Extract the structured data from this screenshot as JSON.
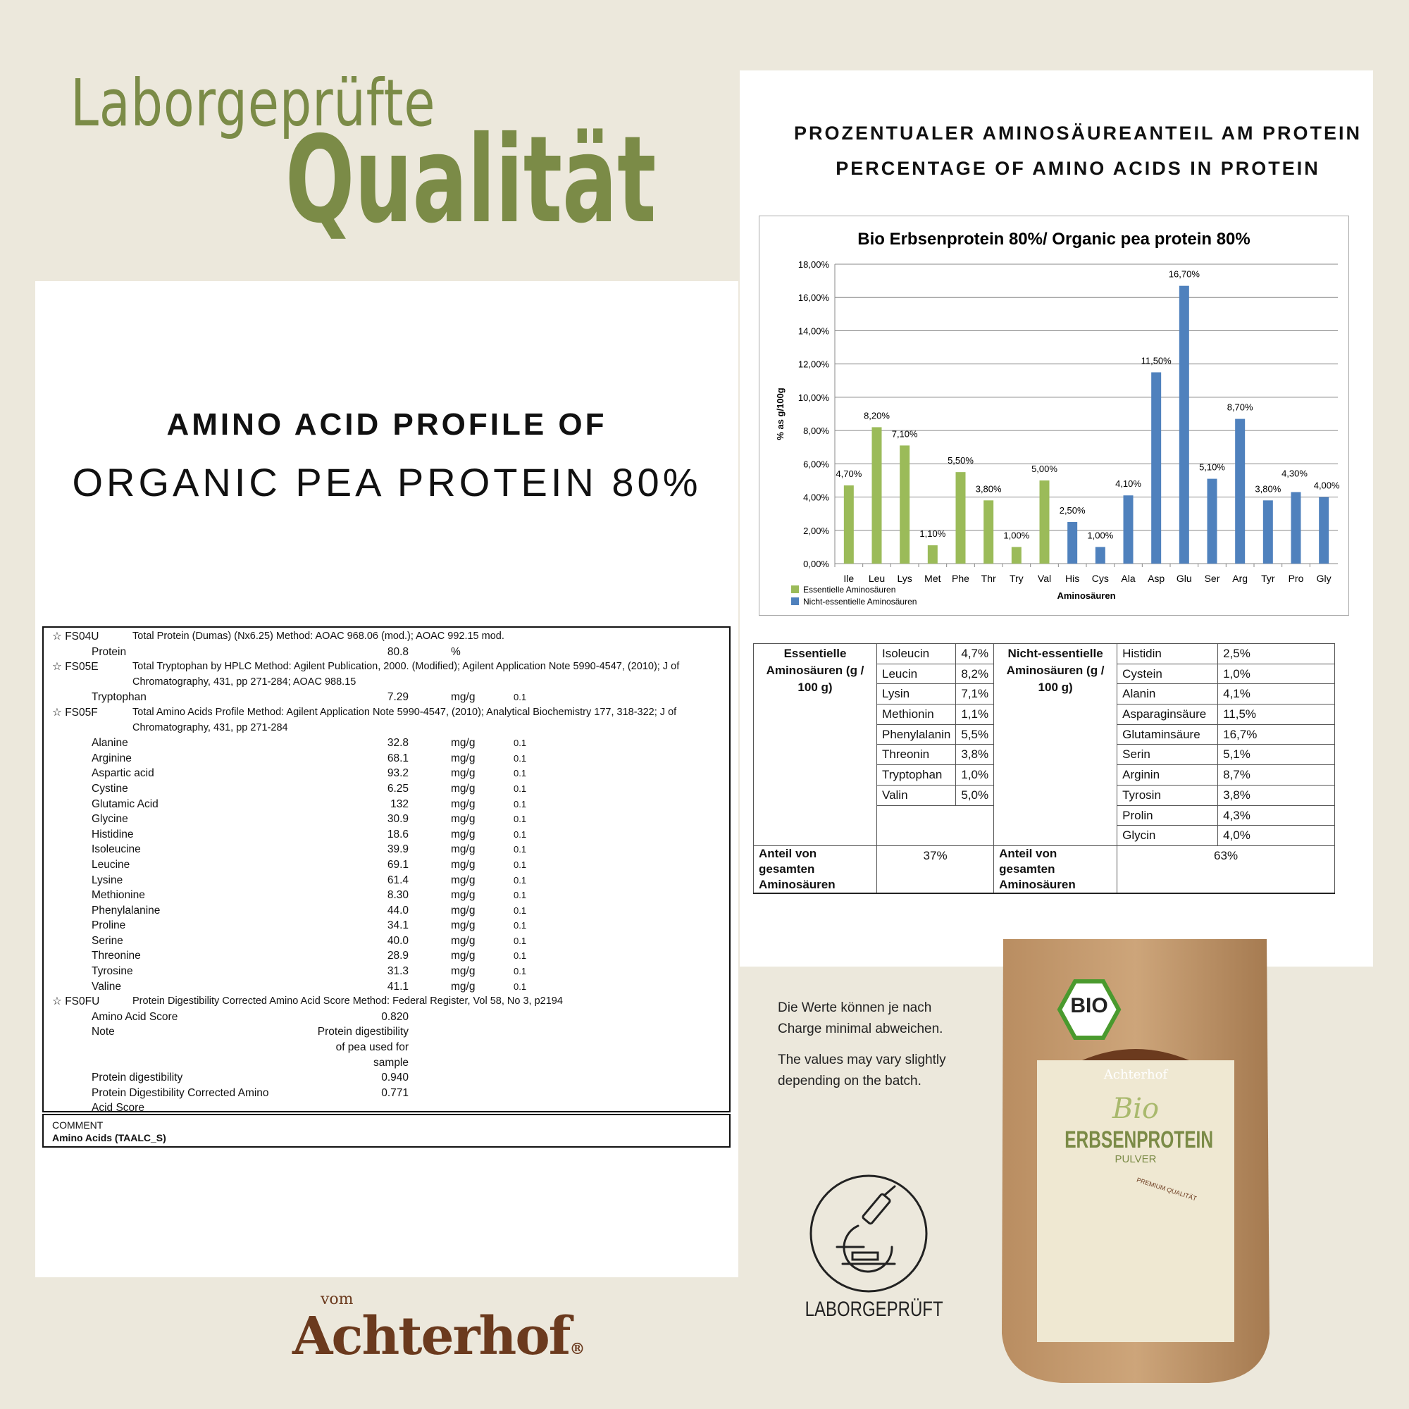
{
  "headline": {
    "line1": "Laborgeprüfte",
    "line2": "Qualität"
  },
  "left_title": {
    "line1": "AMINO ACID PROFILE OF",
    "line2": "ORGANIC PEA PROTEIN 80%"
  },
  "right_title": {
    "line1": "PROZENTUALER AMINOSÄUREANTEIL AM PROTEIN",
    "line2": "PERCENTAGE OF AMINO ACIDS IN PROTEIN"
  },
  "report": {
    "lines": [
      {
        "code": "☆ FS04U",
        "desc": "Total Protein (Dumas) (Nx6.25)    Method: AOAC 968.06 (mod.); AOAC 992.15 mod."
      },
      {
        "name": "Protein",
        "val": "80.8",
        "unit": "%"
      },
      {
        "code": "☆ FS05E",
        "desc": "Total Tryptophan by HPLC    Method: Agilent Publication, 2000. (Modified); Agilent Application Note 5990-4547, (2010); J of"
      },
      {
        "desc": "Chromatography, 431, pp 271-284; AOAC 988.15"
      },
      {
        "name": "Tryptophan",
        "val": "7.29",
        "unit": "mg/g",
        "lod": "0.1"
      },
      {
        "code": "☆ FS05F",
        "desc": "Total Amino Acids Profile    Method: Agilent Application Note 5990-4547, (2010); Analytical Biochemistry 177, 318-322; J of"
      },
      {
        "desc": "Chromatography, 431, pp 271-284"
      },
      {
        "name": "Alanine",
        "val": "32.8",
        "unit": "mg/g",
        "lod": "0.1"
      },
      {
        "name": "Arginine",
        "val": "68.1",
        "unit": "mg/g",
        "lod": "0.1"
      },
      {
        "name": "Aspartic acid",
        "val": "93.2",
        "unit": "mg/g",
        "lod": "0.1"
      },
      {
        "name": "Cystine",
        "val": "6.25",
        "unit": "mg/g",
        "lod": "0.1"
      },
      {
        "name": "Glutamic Acid",
        "val": "132",
        "unit": "mg/g",
        "lod": "0.1"
      },
      {
        "name": "Glycine",
        "val": "30.9",
        "unit": "mg/g",
        "lod": "0.1"
      },
      {
        "name": "Histidine",
        "val": "18.6",
        "unit": "mg/g",
        "lod": "0.1"
      },
      {
        "name": "Isoleucine",
        "val": "39.9",
        "unit": "mg/g",
        "lod": "0.1"
      },
      {
        "name": "Leucine",
        "val": "69.1",
        "unit": "mg/g",
        "lod": "0.1"
      },
      {
        "name": "Lysine",
        "val": "61.4",
        "unit": "mg/g",
        "lod": "0.1"
      },
      {
        "name": "Methionine",
        "val": "8.30",
        "unit": "mg/g",
        "lod": "0.1"
      },
      {
        "name": "Phenylalanine",
        "val": "44.0",
        "unit": "mg/g",
        "lod": "0.1"
      },
      {
        "name": "Proline",
        "val": "34.1",
        "unit": "mg/g",
        "lod": "0.1"
      },
      {
        "name": "Serine",
        "val": "40.0",
        "unit": "mg/g",
        "lod": "0.1"
      },
      {
        "name": "Threonine",
        "val": "28.9",
        "unit": "mg/g",
        "lod": "0.1"
      },
      {
        "name": "Tyrosine",
        "val": "31.3",
        "unit": "mg/g",
        "lod": "0.1"
      },
      {
        "name": "Valine",
        "val": "41.1",
        "unit": "mg/g",
        "lod": "0.1"
      },
      {
        "code": "☆ FS0FU",
        "desc": "Protein Digestibility Corrected Amino Acid Score    Method: Federal Register, Vol 58, No 3, p2194"
      },
      {
        "name": "Amino Acid Score",
        "val": "0.820"
      },
      {
        "name": "Note",
        "val": "Protein digestibility"
      },
      {
        "val": "of pea used for"
      },
      {
        "val": "sample"
      },
      {
        "name": "Protein digestibility",
        "val": "0.940"
      },
      {
        "name": "Protein Digestibility Corrected Amino",
        "val": "0.771"
      },
      {
        "name": "Acid Score"
      }
    ],
    "comment_label": "COMMENT",
    "comment_value": "Amino Acids (TAALC_S)"
  },
  "chart_data": {
    "type": "bar",
    "title": "Bio Erbsenprotein  80%/ Organic pea protein 80%",
    "xlabel": "Aminosäuren",
    "ylabel": "% as g/100g",
    "ylim": [
      0,
      18
    ],
    "yticks": [
      "0,00%",
      "2,00%",
      "4,00%",
      "6,00%",
      "8,00%",
      "10,00%",
      "12,00%",
      "14,00%",
      "16,00%",
      "18,00%"
    ],
    "grid": true,
    "legend_position": "bottom-left",
    "categories": [
      "Ile",
      "Leu",
      "Lys",
      "Met",
      "Phe",
      "Thr",
      "Try",
      "Val",
      "His",
      "Cys",
      "Ala",
      "Asp",
      "Glu",
      "Ser",
      "Arg",
      "Tyr",
      "Pro",
      "Gly"
    ],
    "values": [
      4.7,
      8.2,
      7.1,
      1.1,
      5.5,
      3.8,
      1.0,
      5.0,
      2.5,
      1.0,
      4.1,
      11.5,
      16.7,
      5.1,
      8.7,
      3.8,
      4.3,
      4.0
    ],
    "labels": [
      "4,70%",
      "8,20%",
      "7,10%",
      "1,10%",
      "5,50%",
      "3,80%",
      "1,00%",
      "5,00%",
      "2,50%",
      "1,00%",
      "4,10%",
      "11,50%",
      "16,70%",
      "5,10%",
      "8,70%",
      "3,80%",
      "4,30%",
      "4,00%"
    ],
    "groups": [
      0,
      0,
      0,
      0,
      0,
      0,
      0,
      0,
      1,
      1,
      1,
      1,
      1,
      1,
      1,
      1,
      1,
      1
    ],
    "series": [
      {
        "name": "Essentielle Aminosäuren",
        "color": "#9bbb59"
      },
      {
        "name": "Nicht-essentielle Aminosäuren",
        "color": "#4f81bd"
      }
    ]
  },
  "table": {
    "essential_header": "Essentielle Aminosäuren (g / 100 g)",
    "nonessential_header": "Nicht-essentielle Aminosäuren (g / 100 g)",
    "essential": [
      [
        "Isoleucin",
        "4,7%"
      ],
      [
        "Leucin",
        "8,2%"
      ],
      [
        "Lysin",
        "7,1%"
      ],
      [
        "Methionin",
        "1,1%"
      ],
      [
        "Phenylalanin",
        "5,5%"
      ],
      [
        "Threonin",
        "3,8%"
      ],
      [
        "Tryptophan",
        "1,0%"
      ],
      [
        "Valin",
        "5,0%"
      ]
    ],
    "nonessential": [
      [
        "Histidin",
        "2,5%"
      ],
      [
        "Cystein",
        "1,0%"
      ],
      [
        "Alanin",
        "4,1%"
      ],
      [
        "Asparaginsäure",
        "11,5%"
      ],
      [
        "Glutaminsäure",
        "16,7%"
      ],
      [
        "Serin",
        "5,1%"
      ],
      [
        "Arginin",
        "8,7%"
      ],
      [
        "Tyrosin",
        "3,8%"
      ],
      [
        "Prolin",
        "4,3%"
      ],
      [
        "Glycin",
        "4,0%"
      ]
    ],
    "footer_label": "Anteil von gesamten Aminosäuren",
    "essential_share": "37%",
    "nonessential_share": "63%"
  },
  "note": {
    "de1": "Die Werte können je nach",
    "de2": "Charge minimal abweichen.",
    "en1": "The values may vary slightly",
    "en2": "depending on the batch."
  },
  "badge": {
    "label": "LABORGEPRÜFT",
    "icon": "microscope-icon"
  },
  "logo": {
    "small": "vom",
    "main": "Achterhof",
    "reg": "®"
  },
  "product": {
    "seal": "BIO",
    "brand": "Achterhof",
    "bio": "Bio",
    "name": "ERBSENPROTEIN",
    "sub": "PULVER",
    "tag": "PREMIUM QUALITÄT"
  },
  "colors": {
    "olive": "#7b8b47",
    "background": "#ece8dc",
    "green": "#9bbb59",
    "blue": "#4f81bd"
  }
}
